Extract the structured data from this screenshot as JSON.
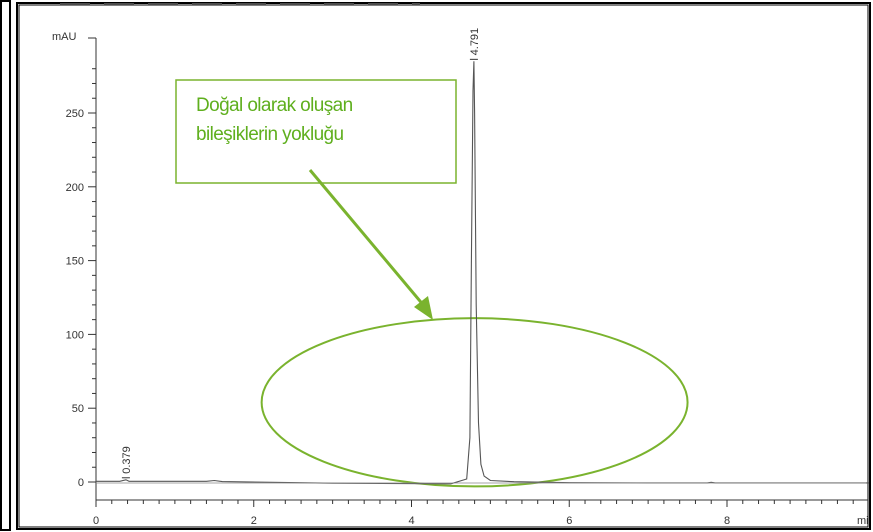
{
  "chart_data": {
    "type": "line",
    "ylabel": "mAU",
    "xlabel": "mi",
    "xlim": [
      0,
      9.8
    ],
    "ylim": [
      -5,
      295
    ],
    "x_ticks": [
      0,
      2,
      4,
      6,
      8
    ],
    "y_ticks": [
      0,
      50,
      100,
      150,
      200,
      250
    ],
    "grid": false,
    "series": [
      {
        "x": [
          0.0,
          0.3,
          0.379,
          0.42,
          1.4,
          1.5,
          1.6,
          3.0,
          4.5,
          4.7,
          4.74,
          4.76,
          4.78,
          4.791,
          4.8,
          4.82,
          4.85,
          4.88,
          4.92,
          5.0,
          5.3,
          6.0,
          7.0,
          7.75,
          7.8,
          7.85,
          9.8
        ],
        "y": [
          0.5,
          0.5,
          1.5,
          0.5,
          0.5,
          1.0,
          0.3,
          -0.8,
          -1.2,
          2.0,
          30,
          150,
          265,
          285,
          250,
          120,
          40,
          12,
          4,
          1,
          0.2,
          -0.5,
          -0.6,
          -0.6,
          -0.2,
          -0.6,
          -0.6
        ]
      }
    ],
    "peak_labels": [
      {
        "x": 0.379,
        "text": "0.379"
      },
      {
        "x": 4.791,
        "text": "4.791"
      }
    ],
    "annotation": {
      "lines": [
        "Doğal olarak oluşan",
        "bileşiklerin yokluğu"
      ],
      "ellipse_center": [
        4.8,
        54
      ],
      "ellipse_radius_x": 2.7,
      "ellipse_radius_y": 57
    },
    "colors": {
      "trace": "#555555",
      "annotation": "#7ab32e",
      "annotation_text": "#5faf1e"
    }
  }
}
